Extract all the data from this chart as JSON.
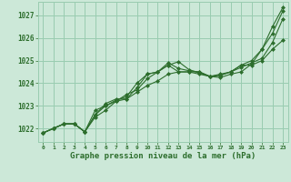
{
  "background_color": "#cce8d8",
  "grid_color": "#99ccb0",
  "line_color": "#2d6e2d",
  "marker_color": "#2d6e2d",
  "xlabel": "Graphe pression niveau de la mer (hPa)",
  "ylabel_labels": [
    1022,
    1023,
    1024,
    1025,
    1026,
    1027
  ],
  "xlim": [
    -0.5,
    23.5
  ],
  "ylim": [
    1021.4,
    1027.6
  ],
  "xticks": [
    0,
    1,
    2,
    3,
    4,
    5,
    6,
    7,
    8,
    9,
    10,
    11,
    12,
    13,
    14,
    15,
    16,
    17,
    18,
    19,
    20,
    21,
    22,
    23
  ],
  "series": [
    [
      1021.8,
      1022.0,
      1022.2,
      1022.2,
      1021.85,
      1022.5,
      1022.8,
      1023.2,
      1023.5,
      1023.7,
      1024.2,
      1024.5,
      1024.8,
      1024.95,
      1024.6,
      1024.45,
      1024.3,
      1024.25,
      1024.4,
      1024.5,
      1024.85,
      1025.5,
      1026.5,
      1027.35
    ],
    [
      1021.8,
      1022.0,
      1022.2,
      1022.2,
      1021.85,
      1022.6,
      1023.1,
      1023.3,
      1023.3,
      1023.8,
      1024.4,
      1024.5,
      1024.9,
      1024.65,
      1024.55,
      1024.5,
      1024.3,
      1024.35,
      1024.5,
      1024.7,
      1024.9,
      1025.1,
      1025.8,
      1026.85
    ],
    [
      1021.8,
      1022.0,
      1022.2,
      1022.2,
      1021.85,
      1022.8,
      1023.0,
      1023.25,
      1023.4,
      1024.0,
      1024.4,
      1024.5,
      1024.8,
      1024.5,
      1024.5,
      1024.4,
      1024.3,
      1024.35,
      1024.5,
      1024.8,
      1025.0,
      1025.5,
      1026.2,
      1027.2
    ],
    [
      1021.8,
      1022.0,
      1022.2,
      1022.2,
      1021.85,
      1022.6,
      1023.0,
      1023.2,
      1023.3,
      1023.6,
      1023.9,
      1024.1,
      1024.4,
      1024.5,
      1024.5,
      1024.5,
      1024.3,
      1024.4,
      1024.5,
      1024.8,
      1024.8,
      1025.0,
      1025.5,
      1025.9
    ]
  ]
}
